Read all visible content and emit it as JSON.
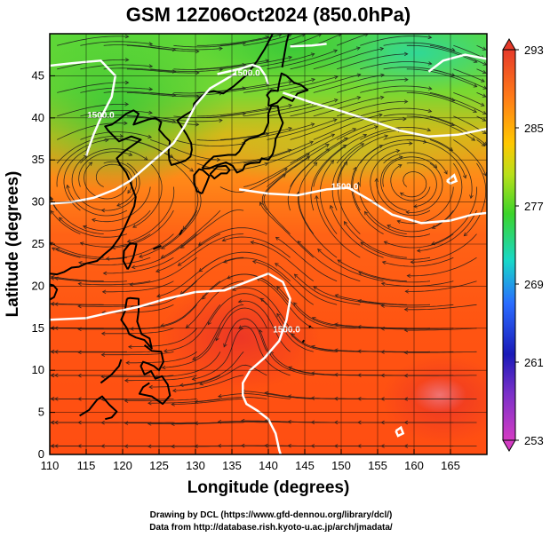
{
  "chart_data": {
    "type": "heatmap",
    "title": "GSM 12Z06Oct2024 (850.0hPa)",
    "xlabel": "Longitude (degrees)",
    "ylabel": "Latitude  (degrees)",
    "xlim": [
      110,
      170
    ],
    "ylim": [
      0,
      50
    ],
    "x_ticks": [
      110,
      115,
      120,
      125,
      130,
      135,
      140,
      145,
      150,
      155,
      160,
      165
    ],
    "y_ticks": [
      0,
      5,
      10,
      15,
      20,
      25,
      30,
      35,
      40,
      45
    ],
    "grid": true,
    "colorbar": {
      "ticks": [
        253,
        261,
        269,
        277,
        285,
        293
      ],
      "range": [
        253,
        293
      ],
      "colors": [
        "#d43cc4",
        "#1a1ab8",
        "#2a8cff",
        "#18d8c8",
        "#44cc22",
        "#ffc800",
        "#ff5a10",
        "#e63a2a"
      ]
    },
    "contours": [
      {
        "label": "1500.0",
        "lon": 150.5,
        "lat": 31.5
      },
      {
        "label": "1500.0",
        "lon": 142.5,
        "lat": 14.5
      },
      {
        "label": "1500.0",
        "lon": 137,
        "lat": 45
      },
      {
        "label": "1500.0",
        "lon": 117,
        "lat": 40
      }
    ],
    "features": [
      "temperature field",
      "streamlines",
      "coastlines",
      "1500 m geopotential height contour"
    ]
  },
  "credits": {
    "line1": "Drawing by DCL (https://www.gfd-dennou.org/library/dcl/)",
    "line2": "Data from http://database.rish.kyoto-u.ac.jp/arch/jmadata/"
  }
}
